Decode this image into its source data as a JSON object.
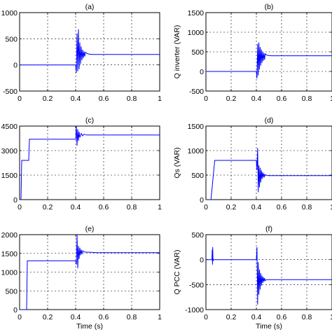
{
  "chart_data": [
    {
      "type": "line",
      "title": "(a)",
      "xlabel": "",
      "ylabel": "",
      "xlim": [
        0,
        1
      ],
      "ylim": [
        -500,
        1000
      ],
      "grid": true,
      "xticks": [
        "0",
        "0.2",
        "0.4",
        "0.6",
        "0.8",
        "1"
      ],
      "yticks": [
        "-500",
        "0",
        "500",
        "1000"
      ],
      "series": [
        {
          "color": "#0000ff",
          "x": [
            0,
            0.395,
            0.4,
            0.405,
            0.41,
            0.415,
            0.42,
            0.425,
            0.43,
            0.435,
            0.44,
            0.445,
            0.45,
            0.455,
            0.46,
            0.465,
            0.47,
            0.48,
            0.49,
            0.5,
            0.52,
            0.55,
            0.6,
            0.7,
            0.8,
            0.9,
            1.0
          ],
          "y": [
            0,
            0,
            0,
            -150,
            600,
            -120,
            680,
            -80,
            430,
            20,
            350,
            90,
            290,
            130,
            260,
            160,
            240,
            220,
            210,
            205,
            200,
            200,
            200,
            200,
            200,
            200,
            200
          ]
        }
      ]
    },
    {
      "type": "line",
      "title": "(b)",
      "xlabel": "",
      "ylabel": "Q inverter (VAR)",
      "xlim": [
        0,
        1
      ],
      "ylim": [
        -500,
        1500
      ],
      "grid": true,
      "xticks": [
        "0",
        "0.2",
        "0.4",
        "0.6",
        "0.8",
        "1"
      ],
      "yticks": [
        "-500",
        "0",
        "500",
        "1000",
        "1500"
      ],
      "series": [
        {
          "color": "#0000ff",
          "x": [
            0,
            0.395,
            0.4,
            0.405,
            0.41,
            0.415,
            0.42,
            0.425,
            0.43,
            0.435,
            0.44,
            0.445,
            0.45,
            0.455,
            0.46,
            0.465,
            0.47,
            0.48,
            0.49,
            0.5,
            0.52,
            0.55,
            0.6,
            0.7,
            0.8,
            0.9,
            1.0
          ],
          "y": [
            0,
            0,
            0,
            -180,
            700,
            -100,
            740,
            50,
            620,
            150,
            560,
            220,
            500,
            270,
            470,
            300,
            450,
            420,
            410,
            405,
            400,
            400,
            400,
            400,
            400,
            400,
            400
          ]
        }
      ]
    },
    {
      "type": "line",
      "title": "(c)",
      "xlabel": "",
      "ylabel": "",
      "xlim": [
        0,
        1
      ],
      "ylim": [
        0,
        4500
      ],
      "grid": true,
      "xticks": [
        "0",
        "0.2",
        "0.4",
        "0.6",
        "0.8",
        "1"
      ],
      "yticks": [
        "0",
        "1500",
        "3000",
        "4500"
      ],
      "series": [
        {
          "color": "#0000ff",
          "x": [
            0,
            0.01,
            0.015,
            0.035,
            0.04,
            0.065,
            0.07,
            0.395,
            0.4,
            0.405,
            0.41,
            0.415,
            0.42,
            0.425,
            0.43,
            0.44,
            0.45,
            0.46,
            0.48,
            0.5,
            0.55,
            0.6,
            0.7,
            0.8,
            0.9,
            1.0
          ],
          "y": [
            0,
            0,
            2400,
            2400,
            2400,
            2400,
            3700,
            3700,
            3700,
            4500,
            3300,
            4300,
            3600,
            4150,
            3800,
            4050,
            3900,
            4000,
            3950,
            3950,
            3950,
            3950,
            3950,
            3950,
            3950,
            3950
          ]
        }
      ]
    },
    {
      "type": "line",
      "title": "(d)",
      "xlabel": "",
      "ylabel": "Qs (VAR)",
      "xlim": [
        0,
        1
      ],
      "ylim": [
        0,
        1500
      ],
      "grid": true,
      "xticks": [
        "0",
        "0.2",
        "0.4",
        "0.6",
        "0.8",
        "1"
      ],
      "yticks": [
        "0",
        "500",
        "1000",
        "1500"
      ],
      "series": [
        {
          "color": "#0000ff",
          "x": [
            0,
            0.04,
            0.07,
            0.395,
            0.4,
            0.405,
            0.41,
            0.415,
            0.42,
            0.425,
            0.43,
            0.435,
            0.44,
            0.445,
            0.45,
            0.455,
            0.46,
            0.465,
            0.47,
            0.48,
            0.5,
            0.55,
            0.6,
            0.7,
            0.8,
            0.9,
            1.0
          ],
          "y": [
            0,
            0,
            800,
            800,
            800,
            600,
            1050,
            150,
            700,
            250,
            650,
            350,
            600,
            420,
            560,
            450,
            530,
            470,
            510,
            495,
            490,
            490,
            490,
            490,
            490,
            490,
            490
          ]
        }
      ]
    },
    {
      "type": "line",
      "title": "(e)",
      "xlabel": "Time (s)",
      "ylabel": "",
      "xlim": [
        0,
        1
      ],
      "ylim": [
        0,
        2000
      ],
      "grid": true,
      "xticks": [
        "0",
        "0.2",
        "0.4",
        "0.6",
        "0.8",
        "1"
      ],
      "yticks": [
        "0",
        "500",
        "1000",
        "1500",
        "2000"
      ],
      "series": [
        {
          "color": "#0000ff",
          "x": [
            0,
            0.05,
            0.055,
            0.07,
            0.075,
            0.395,
            0.4,
            0.405,
            0.41,
            0.415,
            0.42,
            0.425,
            0.43,
            0.435,
            0.44,
            0.445,
            0.45,
            0.46,
            0.48,
            0.5,
            0.55,
            0.6,
            0.7,
            0.8,
            0.9,
            1.0
          ],
          "y": [
            0,
            0,
            1300,
            1300,
            1300,
            1300,
            1300,
            1200,
            2000,
            1100,
            1700,
            1350,
            1650,
            1450,
            1600,
            1480,
            1570,
            1540,
            1530,
            1530,
            1520,
            1520,
            1520,
            1520,
            1520,
            1520
          ]
        }
      ]
    },
    {
      "type": "line",
      "title": "(f)",
      "xlabel": "Time (s)",
      "ylabel": "Q PCC (VAR)",
      "xlim": [
        0,
        1
      ],
      "ylim": [
        -1000,
        500
      ],
      "grid": true,
      "xticks": [
        "0",
        "0.2",
        "0.4",
        "0.6",
        "0.8",
        "1"
      ],
      "yticks": [
        "-1000",
        "-500",
        "0",
        "500"
      ],
      "series": [
        {
          "color": "#0000ff",
          "x": [
            0,
            0.048,
            0.05,
            0.052,
            0.054,
            0.056,
            0.06,
            0.395,
            0.4,
            0.405,
            0.41,
            0.415,
            0.42,
            0.425,
            0.43,
            0.435,
            0.44,
            0.445,
            0.45,
            0.455,
            0.46,
            0.465,
            0.47,
            0.48,
            0.5,
            0.55,
            0.6,
            0.7,
            0.8,
            0.9,
            1.0
          ],
          "y": [
            0,
            0,
            200,
            -100,
            250,
            -30,
            0,
            0,
            0,
            250,
            -900,
            -50,
            -700,
            -200,
            -600,
            -270,
            -520,
            -320,
            -470,
            -350,
            -440,
            -370,
            -420,
            -400,
            -400,
            -400,
            -400,
            -400,
            -400,
            -400,
            -400
          ]
        }
      ]
    }
  ]
}
